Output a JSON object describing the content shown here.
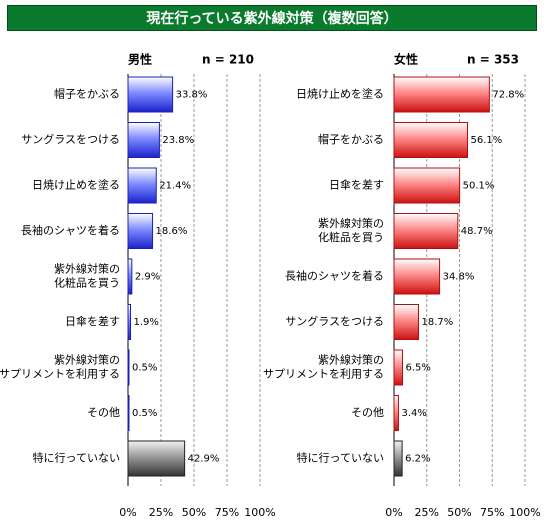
{
  "title": "現在行っている紫外線対策（複数回答）",
  "colors": {
    "title_bg": "#0a7a2c",
    "male": "#3344ee",
    "female": "#ee2a2a",
    "other": "#555555"
  },
  "chart_data": [
    {
      "type": "bar",
      "orientation": "horizontal",
      "panel": "男性",
      "n_label": "n = 210",
      "categories": [
        "帽子をかぶる",
        "サングラスをつける",
        "日焼け止めを塗る",
        "長袖のシャツを着る",
        "紫外線対策の\n化粧品を買う",
        "日傘を差す",
        "紫外線対策の\nサプリメントを利用する",
        "その他",
        "特に行っていない"
      ],
      "values": [
        33.8,
        23.8,
        21.4,
        18.6,
        2.9,
        1.9,
        0.5,
        0.5,
        42.9
      ],
      "data_labels": [
        "33.8%",
        "23.8%",
        "21.4%",
        "18.6%",
        "2.9%",
        "1.9%",
        "0.5%",
        "0.5%",
        "42.9%"
      ],
      "xlim": [
        0,
        100
      ],
      "ticks": [
        "0%",
        "25%",
        "50%",
        "75%",
        "100%"
      ],
      "grid": "vertical dashed"
    },
    {
      "type": "bar",
      "orientation": "horizontal",
      "panel": "女性",
      "n_label": "n = 353",
      "categories": [
        "日焼け止めを塗る",
        "帽子をかぶる",
        "日傘を差す",
        "紫外線対策の\n化粧品を買う",
        "長袖のシャツを着る",
        "サングラスをつける",
        "紫外線対策の\nサプリメントを利用する",
        "その他",
        "特に行っていない"
      ],
      "values": [
        72.8,
        56.1,
        50.1,
        48.7,
        34.8,
        18.7,
        6.5,
        3.4,
        6.2
      ],
      "data_labels": [
        "72.8%",
        "56.1%",
        "50.1%",
        "48.7%",
        "34.8%",
        "18.7%",
        "6.5%",
        "3.4%",
        "6.2%"
      ],
      "xlim": [
        0,
        100
      ],
      "ticks": [
        "0%",
        "25%",
        "50%",
        "75%",
        "100%"
      ],
      "grid": "vertical dashed"
    }
  ]
}
